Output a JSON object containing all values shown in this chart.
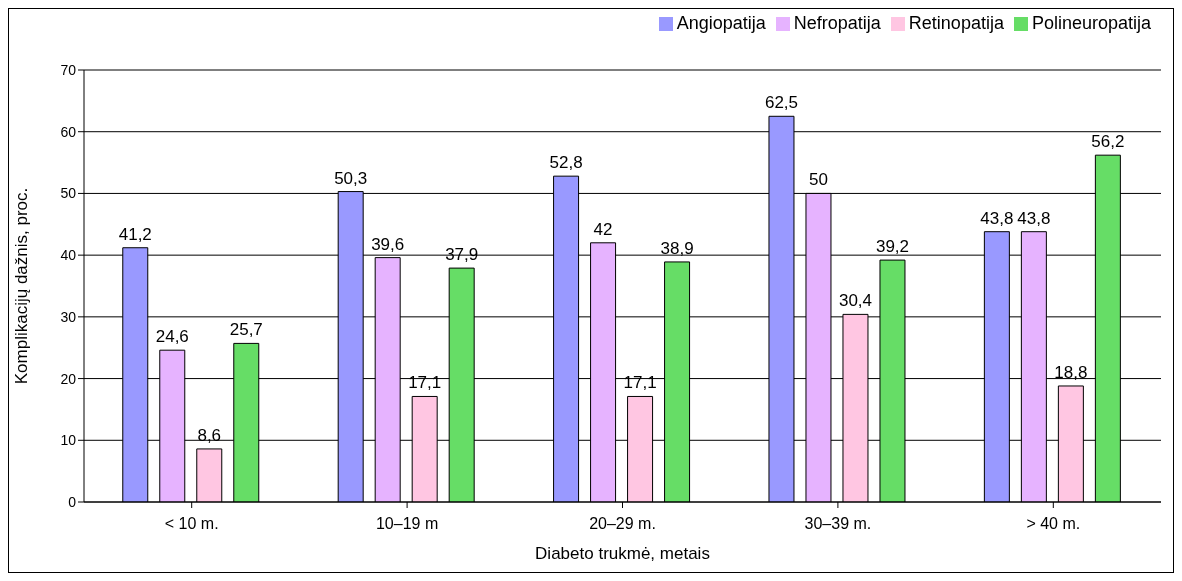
{
  "chart_data": {
    "type": "bar",
    "xlabel": "Diabeto trukmė, metais",
    "ylabel": "Komplikacijų dažnis, proc.",
    "categories": [
      "< 10 m.",
      "10–19 m",
      "20–29 m.",
      "30–39 m.",
      "> 40 m."
    ],
    "series": [
      {
        "name": "Angiopatija",
        "color": "#9999ff",
        "values": [
          41.2,
          50.3,
          52.8,
          62.5,
          43.8
        ],
        "value_labels": [
          "41,2",
          "50,3",
          "52,8",
          "62,5",
          "43,8"
        ]
      },
      {
        "name": "Nefropatija",
        "color": "#e6b3ff",
        "values": [
          24.6,
          39.6,
          42,
          50,
          43.8
        ],
        "value_labels": [
          "24,6",
          "39,6",
          "42",
          "50",
          "43,8"
        ]
      },
      {
        "name": "Retinopatija",
        "color": "#ffc6e2",
        "values": [
          8.6,
          17.1,
          17.1,
          30.4,
          18.8
        ],
        "value_labels": [
          "8,6",
          "17,1",
          "17,1",
          "30,4",
          "18,8"
        ]
      },
      {
        "name": "Polineuropatija",
        "color": "#66dd66",
        "values": [
          25.7,
          37.9,
          38.9,
          39.2,
          56.2
        ],
        "value_labels": [
          "25,7",
          "37,9",
          "38,9",
          "39,2",
          "56,2"
        ]
      }
    ],
    "ylim": [
      0,
      70
    ],
    "yticks": [
      0,
      10,
      20,
      30,
      40,
      50,
      60,
      70
    ],
    "grid": "y",
    "legend": "top right"
  }
}
